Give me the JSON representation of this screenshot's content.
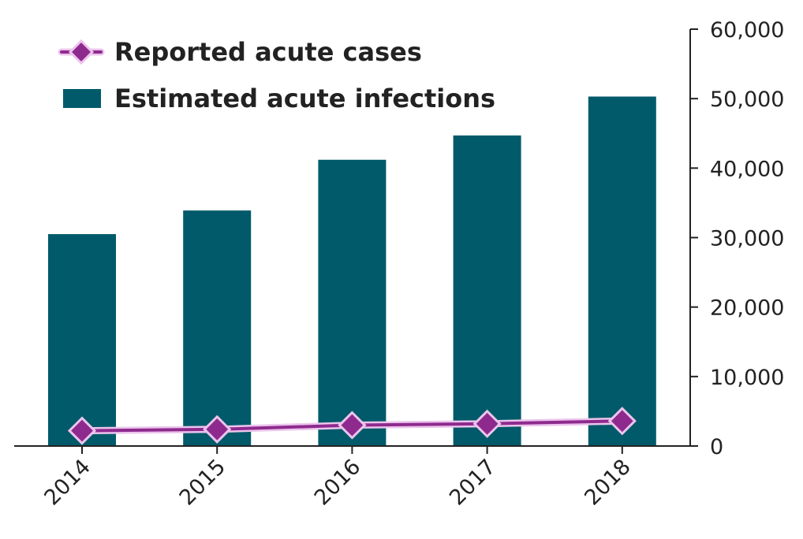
{
  "chart_data": {
    "type": "bar",
    "categories": [
      "2014",
      "2015",
      "2016",
      "2017",
      "2018"
    ],
    "series": [
      {
        "name": "Estimated acute infections",
        "kind": "bar",
        "color": "#005a6a",
        "values": [
          30500,
          33900,
          41200,
          44700,
          50300
        ]
      },
      {
        "name": "Reported acute cases",
        "kind": "line",
        "color": "#8e2a8e",
        "marker_fill": "#8e2a8e",
        "marker_outline": "#ecc4ec",
        "values": [
          2200,
          2400,
          3000,
          3200,
          3600
        ]
      }
    ],
    "y_axis": {
      "position": "right",
      "ylim": [
        0,
        60000
      ],
      "ticks": [
        0,
        10000,
        20000,
        30000,
        40000,
        50000,
        60000
      ],
      "tick_labels": [
        "0",
        "10,000",
        "20,000",
        "30,000",
        "40,000",
        "50,000",
        "60,000"
      ]
    },
    "x_tick_rotation": -45,
    "legend_position": "top-left",
    "grid": false,
    "title": "",
    "xlabel": "",
    "ylabel": ""
  }
}
